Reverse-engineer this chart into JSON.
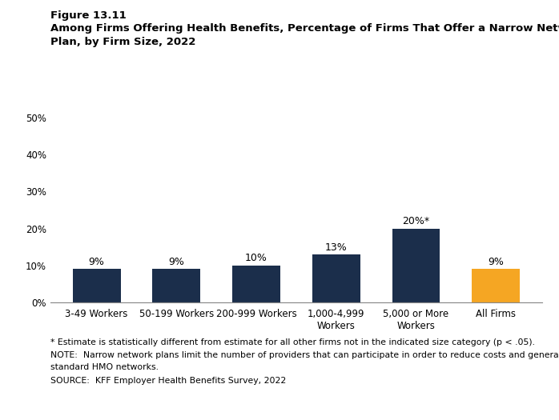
{
  "figure_label": "Figure 13.11",
  "title_line1": "Among Firms Offering Health Benefits, Percentage of Firms That Offer a Narrow Network",
  "title_line2": "Plan, by Firm Size, 2022",
  "categories": [
    "3-49 Workers",
    "50-199 Workers",
    "200-999 Workers",
    "1,000-4,999\nWorkers",
    "5,000 or More\nWorkers",
    "All Firms"
  ],
  "values": [
    9,
    9,
    10,
    13,
    20,
    9
  ],
  "bar_colors": [
    "#1b2e4b",
    "#1b2e4b",
    "#1b2e4b",
    "#1b2e4b",
    "#1b2e4b",
    "#f5a623"
  ],
  "labels": [
    "9%",
    "9%",
    "10%",
    "13%",
    "20%*",
    "9%"
  ],
  "ylim": [
    0,
    50
  ],
  "yticks": [
    0,
    10,
    20,
    30,
    40,
    50
  ],
  "ytick_labels": [
    "0%",
    "10%",
    "20%",
    "30%",
    "40%",
    "50%"
  ],
  "footnote1": "* Estimate is statistically different from estimate for all other firms not in the indicated size category (p < .05).",
  "footnote2": "NOTE:  Narrow network plans limit the number of providers that can participate in order to reduce costs and generally are more restrictive than",
  "footnote2b": "standard HMO networks.",
  "footnote3": "SOURCE:  KFF Employer Health Benefits Survey, 2022",
  "background_color": "#ffffff",
  "label_fontsize": 9,
  "tick_fontsize": 8.5,
  "footnote_fontsize": 7.8,
  "header_fontsize": 9.5
}
